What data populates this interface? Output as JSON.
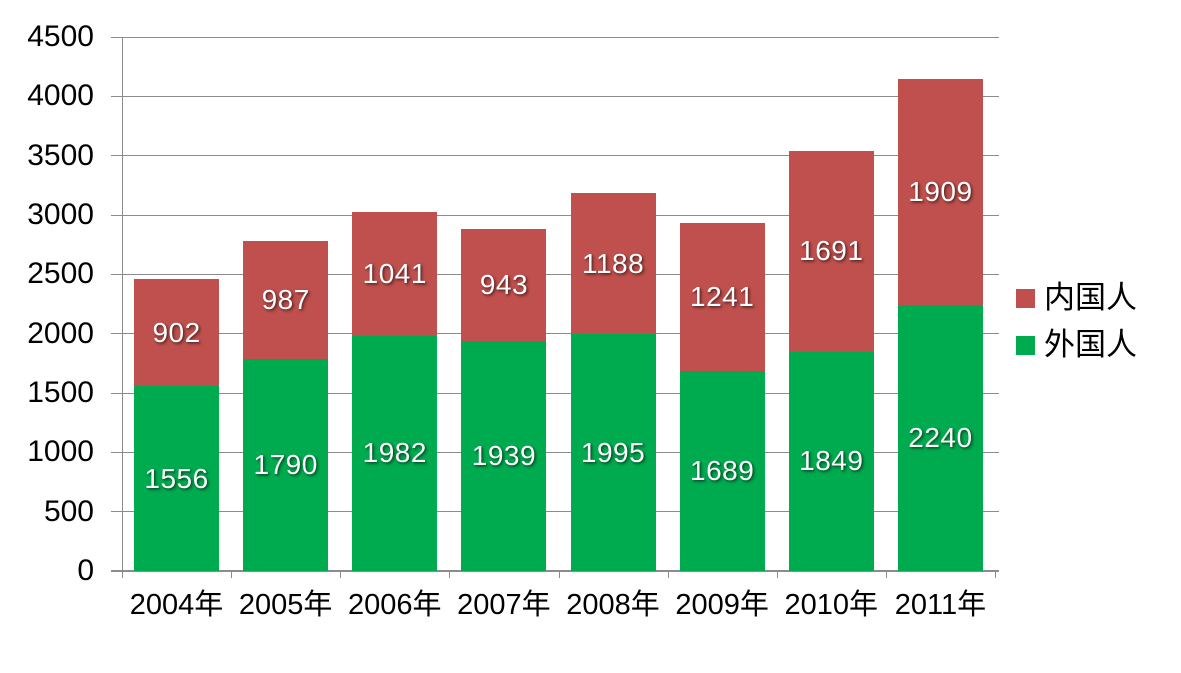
{
  "chart_data": {
    "type": "bar",
    "variant": "stacked-column",
    "title": "",
    "xlabel": "",
    "ylabel": "",
    "categories": [
      "2004年",
      "2005年",
      "2006年",
      "2007年",
      "2008年",
      "2009年",
      "2010年",
      "2011年"
    ],
    "series": [
      {
        "name": "外国人",
        "color": "#00AB4F",
        "values": [
          1556,
          1790,
          1982,
          1939,
          1995,
          1689,
          1849,
          2240
        ]
      },
      {
        "name": "内国人",
        "color": "#C0504D",
        "values": [
          902,
          987,
          1041,
          943,
          1188,
          1241,
          1691,
          1909
        ]
      }
    ],
    "ylim": [
      0,
      4500
    ],
    "yticks": [
      0,
      500,
      1000,
      1500,
      2000,
      2500,
      3000,
      3500,
      4000,
      4500
    ],
    "grid": true,
    "data_labels": true,
    "data_label_color": "#FFFFFF",
    "legend": {
      "position": "right",
      "entries": [
        "内国人",
        "外国人"
      ]
    }
  },
  "colors": {
    "background": "#FFFFFF",
    "gridline": "#8C8C8C",
    "axis_text": "#000000"
  }
}
